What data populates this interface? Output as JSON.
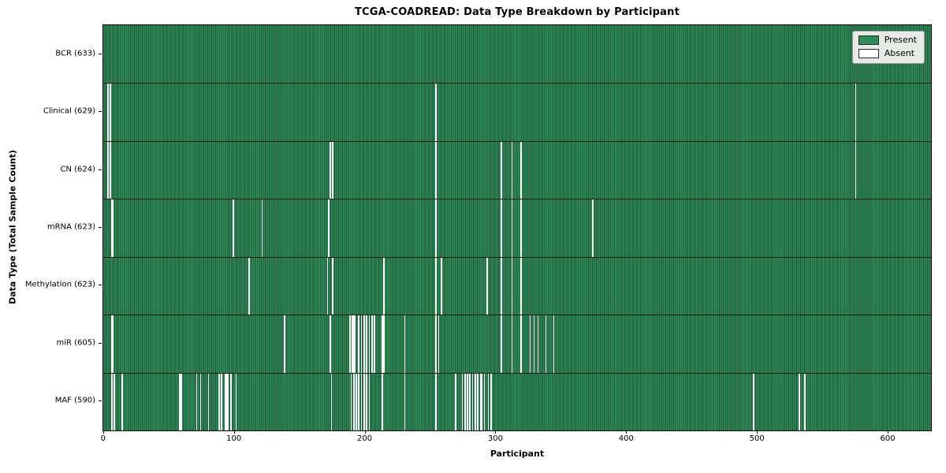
{
  "chart_data": {
    "type": "heatmap",
    "title": "TCGA-COADREAD: Data Type Breakdown by Participant",
    "xlabel": "Participant",
    "ylabel": "Data Type (Total Sample Count)",
    "n_participants": 633,
    "x_ticks": [
      0,
      100,
      200,
      300,
      400,
      500,
      600
    ],
    "grid": false,
    "legend_position": "upper right",
    "legend": [
      {
        "label": "Present",
        "color": "#2e8b57"
      },
      {
        "label": "Absent",
        "color": "#ffffff"
      }
    ],
    "present_color": "#2e8b57",
    "absent_color": "#ffffff",
    "rows": [
      {
        "label": "BCR (633)",
        "total": 633,
        "absent": []
      },
      {
        "label": "Clinical (629)",
        "total": 629,
        "absent": [
          3,
          5,
          254,
          575
        ]
      },
      {
        "label": "CN (624)",
        "total": 624,
        "absent": [
          3,
          5,
          173,
          175,
          254,
          304,
          312,
          319,
          575
        ]
      },
      {
        "label": "mRNA (623)",
        "total": 623,
        "absent": [
          6,
          7,
          99,
          121,
          172,
          254,
          304,
          312,
          319,
          374
        ]
      },
      {
        "label": "Methylation (623)",
        "total": 623,
        "absent": [
          111,
          171,
          175,
          214,
          254,
          258,
          293,
          304,
          312,
          319
        ]
      },
      {
        "label": "miR (605)",
        "total": 605,
        "absent": [
          6,
          7,
          138,
          173,
          188,
          190,
          191,
          192,
          195,
          197,
          199,
          201,
          203,
          205,
          207,
          213,
          214,
          230,
          254,
          256,
          304,
          312,
          319,
          326,
          329,
          332,
          338,
          344
        ]
      },
      {
        "label": "MAF (590)",
        "total": 590,
        "absent": [
          6,
          8,
          14,
          58,
          59,
          71,
          74,
          80,
          88,
          90,
          93,
          94,
          95,
          97,
          101,
          174,
          189,
          191,
          193,
          195,
          197,
          199,
          201,
          203,
          213,
          230,
          254,
          269,
          274,
          276,
          278,
          280,
          282,
          284,
          286,
          288,
          289,
          291,
          294,
          296,
          497,
          532,
          536
        ]
      }
    ]
  }
}
